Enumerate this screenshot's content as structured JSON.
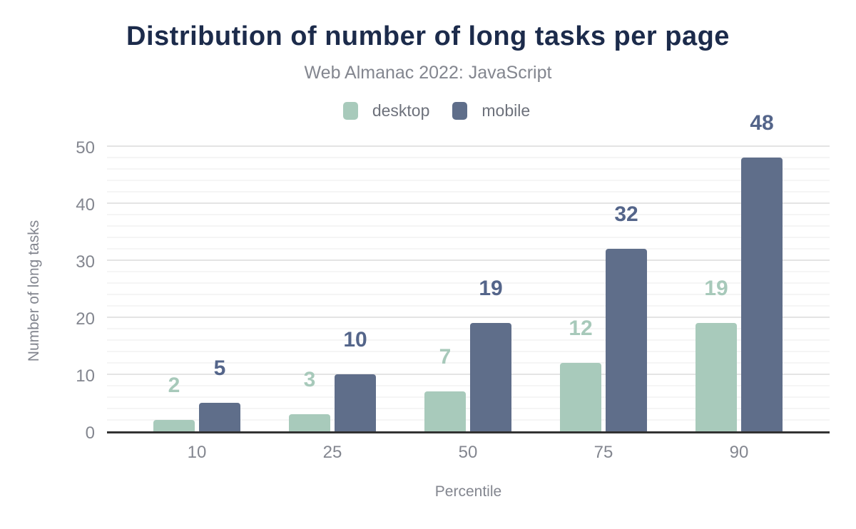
{
  "chart_data": {
    "type": "bar",
    "title": "Distribution of number of long tasks per page",
    "subtitle": "Web Almanac 2022: JavaScript",
    "xlabel": "Percentile",
    "ylabel": "Number of long tasks",
    "categories": [
      "10",
      "25",
      "50",
      "75",
      "90"
    ],
    "series": [
      {
        "name": "desktop",
        "color": "#a8cabb",
        "label_color": "#a7c9ba",
        "values": [
          2,
          3,
          7,
          12,
          19
        ]
      },
      {
        "name": "mobile",
        "color": "#5f6e8a",
        "label_color": "#54658a",
        "values": [
          5,
          10,
          19,
          32,
          48
        ]
      }
    ],
    "ylim": [
      0,
      50
    ],
    "yticks": [
      0,
      10,
      20,
      30,
      40,
      50
    ],
    "grid": {
      "major_step": 10,
      "minor_step": 2,
      "grid_on": true
    },
    "legend_position": "top"
  },
  "colors": {
    "background": "#ffffff",
    "title": "#1c2b4b",
    "subtitle": "#83868f",
    "axis_text": "#83868f",
    "legend_text": "#6d717b",
    "axis_line": "#323232",
    "grid_major": "#e4e4e4",
    "grid_minor": "#f5f5f5",
    "desktop": "#a8cabb",
    "mobile": "#5f6e8a"
  }
}
